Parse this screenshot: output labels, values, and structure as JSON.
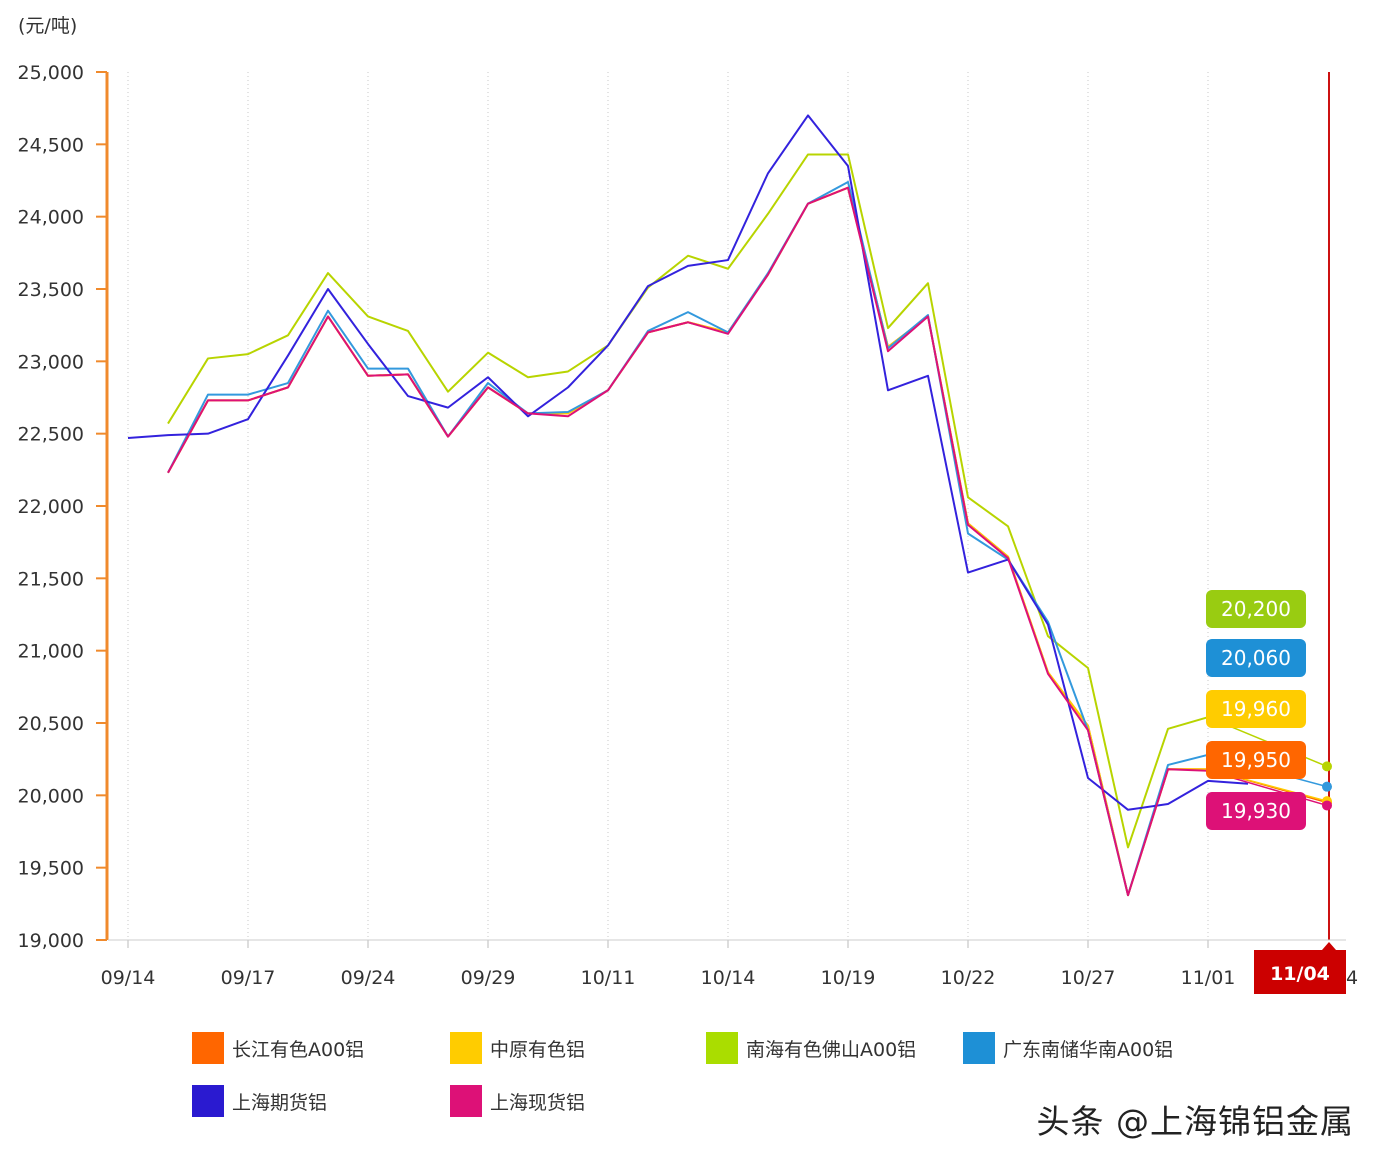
{
  "chart_data": {
    "type": "line",
    "unit_label": "(元/吨)",
    "ylim": [
      19000,
      25000
    ],
    "yticks": [
      "25,000",
      "24,500",
      "24,000",
      "23,500",
      "23,000",
      "22,500",
      "22,000",
      "21,500",
      "21,000",
      "20,500",
      "20,000",
      "19,500",
      "19,000"
    ],
    "yticks_values": [
      25000,
      24500,
      24000,
      23500,
      23000,
      22500,
      22000,
      21500,
      21000,
      20500,
      20000,
      19500,
      19000
    ],
    "xlabels": [
      "09/14",
      "09/17",
      "09/24",
      "09/29",
      "10/11",
      "10/14",
      "10/19",
      "10/22",
      "10/27",
      "11/01"
    ],
    "x_count": 31,
    "highlight_label": "11/04",
    "highlight_label_tail": "4",
    "grid": "vertical-dotted",
    "series": [
      {
        "name": "长江有色A00铝",
        "color": "#ff6600",
        "values": [
          null,
          22230,
          22730,
          22730,
          22820,
          23310,
          22900,
          22910,
          22480,
          22820,
          22640,
          22640,
          22800,
          23200,
          23270,
          23200,
          23600,
          24090,
          24200,
          23100,
          23310,
          21880,
          21650,
          20850,
          20480,
          19310,
          20180,
          20180,
          null,
          null,
          19950
        ]
      },
      {
        "name": "中原有色铝",
        "color": "#ffcc00",
        "values": [
          null,
          22230,
          22730,
          22730,
          22820,
          23310,
          22900,
          22910,
          22480,
          22820,
          22640,
          22640,
          22800,
          23200,
          23270,
          23200,
          23600,
          24090,
          24200,
          23100,
          23310,
          21880,
          21650,
          20850,
          20480,
          19310,
          20180,
          20180,
          null,
          null,
          19960
        ]
      },
      {
        "name": "南海有色佛山A00铝",
        "color": "#b8d400",
        "values": [
          null,
          22570,
          23020,
          23050,
          23180,
          23610,
          23310,
          23210,
          22790,
          23060,
          22890,
          22930,
          23110,
          23510,
          23730,
          23640,
          24020,
          24430,
          24430,
          23230,
          23540,
          22060,
          21860,
          21100,
          20880,
          19640,
          20460,
          20540,
          null,
          null,
          20200
        ]
      },
      {
        "name": "广东南储华南A00铝",
        "color": "#3399dd",
        "values": [
          null,
          22230,
          22770,
          22770,
          22850,
          23350,
          22950,
          22950,
          22480,
          22850,
          22640,
          22650,
          22800,
          23210,
          23340,
          23200,
          23610,
          24090,
          24240,
          23090,
          23320,
          21810,
          21630,
          21200,
          20450,
          19310,
          20210,
          20280,
          null,
          null,
          20060
        ]
      },
      {
        "name": "上海期货铝",
        "color": "#3322dd",
        "values": [
          22470,
          22490,
          22500,
          22600,
          23040,
          23500,
          23120,
          22760,
          22680,
          22890,
          22620,
          22820,
          23110,
          23520,
          23660,
          23700,
          24300,
          24700,
          24350,
          22800,
          22900,
          21540,
          21630,
          21180,
          20120,
          19900,
          19940,
          20100,
          20080,
          null,
          null
        ]
      },
      {
        "name": "上海现货铝",
        "color": "#dd1177",
        "values": [
          null,
          22230,
          22730,
          22730,
          22820,
          23310,
          22900,
          22910,
          22480,
          22820,
          22640,
          22620,
          22800,
          23200,
          23270,
          23190,
          23600,
          24090,
          24200,
          23070,
          23310,
          21870,
          21640,
          20840,
          20450,
          19310,
          20180,
          20170,
          null,
          null,
          19930
        ]
      }
    ],
    "end_labels": [
      {
        "text": "20,200",
        "color": "#99cc11"
      },
      {
        "text": "20,060",
        "color": "#1e90d6"
      },
      {
        "text": "19,960",
        "color": "#ffcc00"
      },
      {
        "text": "19,950",
        "color": "#ff6600"
      },
      {
        "text": "19,930",
        "color": "#dd1177"
      }
    ]
  },
  "legend": [
    {
      "label": "长江有色A00铝",
      "color": "#ff6600"
    },
    {
      "label": "中原有色铝",
      "color": "#ffcc00"
    },
    {
      "label": "南海有色佛山A00铝",
      "color": "#aadd00"
    },
    {
      "label": "广东南储华南A00铝",
      "color": "#1e90d6"
    },
    {
      "label": "上海期货铝",
      "color": "#2a1ad0"
    },
    {
      "label": "上海现货铝",
      "color": "#dd1177"
    }
  ],
  "watermark": "头条 @上海锦铝金属"
}
